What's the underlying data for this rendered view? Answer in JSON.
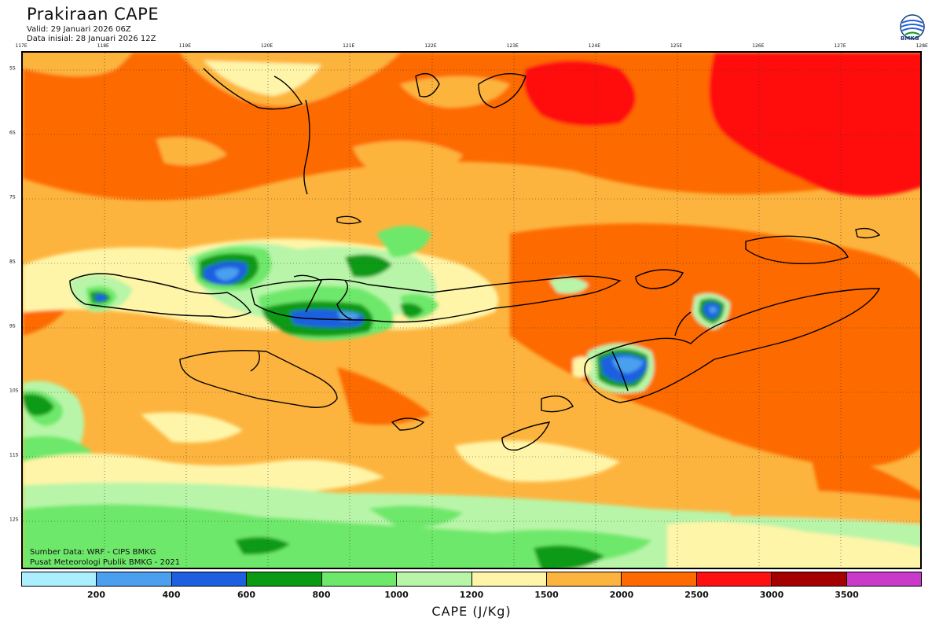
{
  "header": {
    "title": "Prakiraan CAPE",
    "valid": "Valid: 29 Januari 2026 06Z",
    "init": "Data inisial: 28 Januari 2026 12Z",
    "logo_text": "BMKG"
  },
  "axes": {
    "lon_labels": [
      "117E",
      "118E",
      "119E",
      "120E",
      "121E",
      "122E",
      "123E",
      "124E",
      "125E",
      "126E",
      "127E",
      "128E"
    ],
    "lat_labels": [
      "5S",
      "6S",
      "7S",
      "8S",
      "9S",
      "10S",
      "11S",
      "12S"
    ]
  },
  "credits": {
    "source": "Sumber Data: WRF - CIPS BMKG",
    "center": "Pusat Meteorologi Publik BMKG - 2021"
  },
  "colorbar": {
    "title": "CAPE (J/Kg)",
    "tick_labels": [
      "200",
      "400",
      "600",
      "800",
      "1000",
      "1200",
      "1500",
      "2000",
      "2500",
      "3000",
      "3500"
    ],
    "colors": [
      "#aaeeff",
      "#4aa0ee",
      "#1e5fe0",
      "#0a9a14",
      "#6ee86a",
      "#b8f5a8",
      "#fff5a8",
      "#fdb43e",
      "#fd6a00",
      "#ff1010",
      "#a50000",
      "#c93ac9"
    ]
  }
}
